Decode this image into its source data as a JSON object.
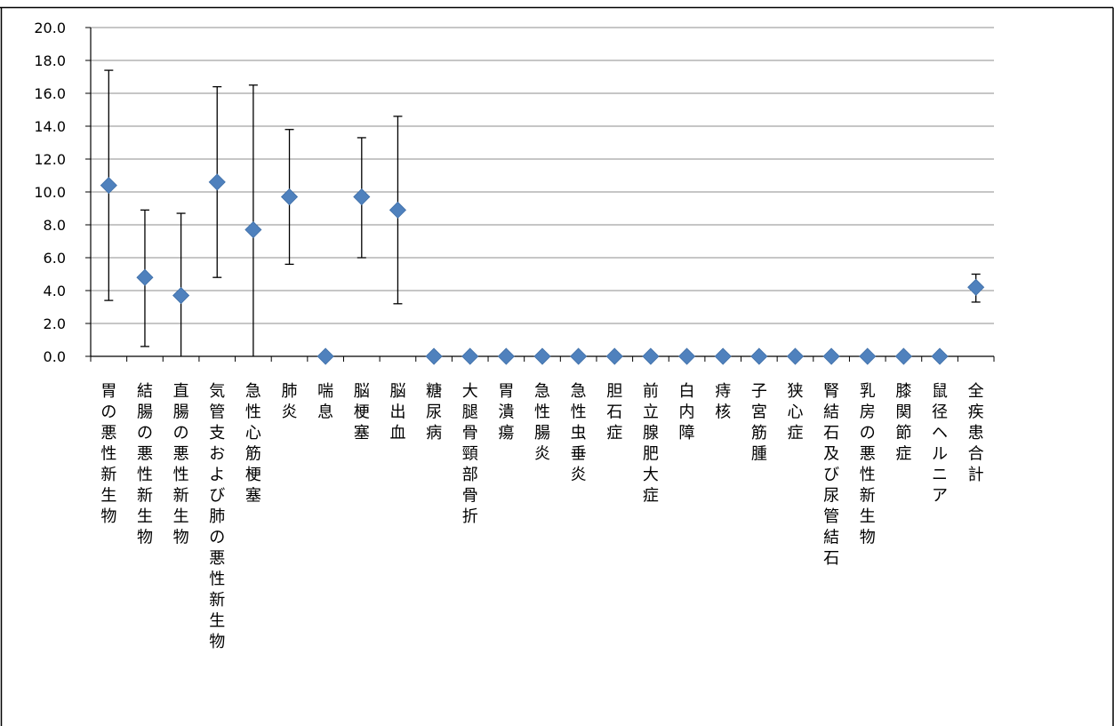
{
  "chart_data": {
    "type": "scatter",
    "title": "",
    "xlabel": "",
    "ylabel": "",
    "ylim": [
      0,
      20
    ],
    "yticks": [
      0,
      2,
      4,
      6,
      8,
      10,
      12,
      14,
      16,
      18,
      20
    ],
    "ytick_labels": [
      "0.0",
      "2.0",
      "4.0",
      "6.0",
      "8.0",
      "10.0",
      "12.0",
      "14.0",
      "16.0",
      "18.0",
      "20.0"
    ],
    "grid": true,
    "legend": "none",
    "marker": "diamond",
    "marker_color": "#4f81bd",
    "error_bar_color": "#000000",
    "categories": [
      "胃の悪性新生物",
      "結腸の悪性新生物",
      "直腸の悪性新生物",
      "気管支および肺の悪性新生物",
      "急性心筋梗塞",
      "肺炎",
      "喘息",
      "脳梗塞",
      "脳出血",
      "糖尿病",
      "大腿骨頸部骨折",
      "胃潰瘍",
      "急性腸炎",
      "急性虫垂炎",
      "胆石症",
      "前立腺肥大症",
      "白内障",
      "痔核",
      "子宮筋腫",
      "狭心症",
      "腎結石及び尿管結石",
      "乳房の悪性新生物",
      "膝関節症",
      "鼠径ヘルニア",
      "全疾患合計"
    ],
    "values": [
      10.4,
      4.8,
      3.7,
      10.6,
      7.7,
      9.7,
      0.0,
      9.7,
      8.9,
      0.0,
      0.0,
      0.0,
      0.0,
      0.0,
      0.0,
      0.0,
      0.0,
      0.0,
      0.0,
      0.0,
      0.0,
      0.0,
      0.0,
      0.0,
      4.2
    ],
    "error_upper": [
      17.4,
      8.9,
      8.7,
      16.4,
      16.5,
      13.8,
      null,
      13.3,
      14.6,
      null,
      null,
      null,
      null,
      null,
      null,
      null,
      null,
      null,
      null,
      null,
      null,
      null,
      null,
      null,
      5.0
    ],
    "error_lower": [
      3.4,
      0.6,
      0.0,
      4.8,
      0.0,
      5.6,
      null,
      6.0,
      3.2,
      null,
      null,
      null,
      null,
      null,
      null,
      null,
      null,
      null,
      null,
      null,
      null,
      null,
      null,
      null,
      3.3
    ]
  }
}
